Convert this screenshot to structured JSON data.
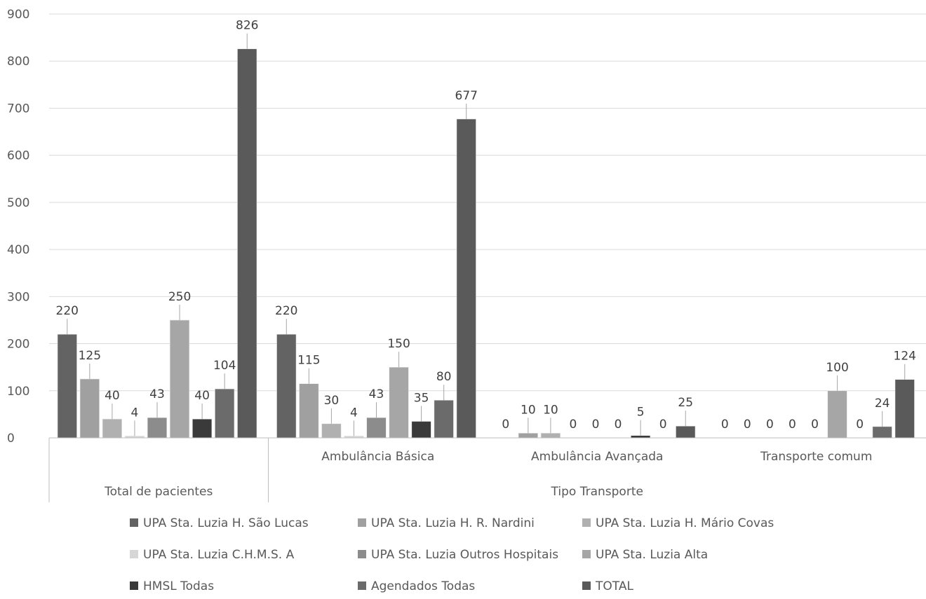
{
  "chart_data": {
    "type": "bar",
    "title": "",
    "xlabel": "",
    "ylabel": "",
    "ylim": [
      0,
      900
    ],
    "yticks": [
      0,
      100,
      200,
      300,
      400,
      500,
      600,
      700,
      800,
      900
    ],
    "grid": true,
    "legend_position": "bottom",
    "categories": [
      "Total de pacientes",
      "Ambulância Básica",
      "Ambulância Avançada",
      "Transporte comum"
    ],
    "category_groups": [
      {
        "label": "",
        "categories": [
          "Total de pacientes"
        ]
      },
      {
        "label": "Tipo Transporte",
        "categories": [
          "Ambulância Básica",
          "Ambulância Avançada",
          "Transporte comum"
        ]
      }
    ],
    "outer_labels": [
      "Total de pacientes",
      "Tipo Transporte"
    ],
    "series": [
      {
        "name": "UPA Sta. Luzia H. São Lucas",
        "color": "#636363",
        "values": [
          220,
          220,
          0,
          0
        ]
      },
      {
        "name": "UPA Sta. Luzia H. R. Nardini",
        "color": "#a0a0a0",
        "values": [
          125,
          115,
          10,
          0
        ]
      },
      {
        "name": "UPA Sta. Luzia H. Mário Covas",
        "color": "#b0b0b0",
        "values": [
          40,
          30,
          10,
          0
        ]
      },
      {
        "name": "UPA Sta. Luzia C.H.M.S. A",
        "color": "#d6d6d6",
        "values": [
          4,
          4,
          0,
          0
        ]
      },
      {
        "name": "UPA Sta. Luzia Outros Hospitais",
        "color": "#8c8c8c",
        "values": [
          43,
          43,
          0,
          0
        ]
      },
      {
        "name": "UPA Sta. Luzia Alta",
        "color": "#a6a6a6",
        "values": [
          250,
          150,
          0,
          100
        ]
      },
      {
        "name": "HMSL Todas",
        "color": "#3a3a3a",
        "values": [
          40,
          35,
          5,
          0
        ]
      },
      {
        "name": "Agendados Todas",
        "color": "#6b6b6b",
        "values": [
          104,
          80,
          0,
          24
        ]
      },
      {
        "name": "TOTAL",
        "color": "#5a5a5a",
        "values": [
          826,
          677,
          25,
          124
        ]
      }
    ]
  }
}
